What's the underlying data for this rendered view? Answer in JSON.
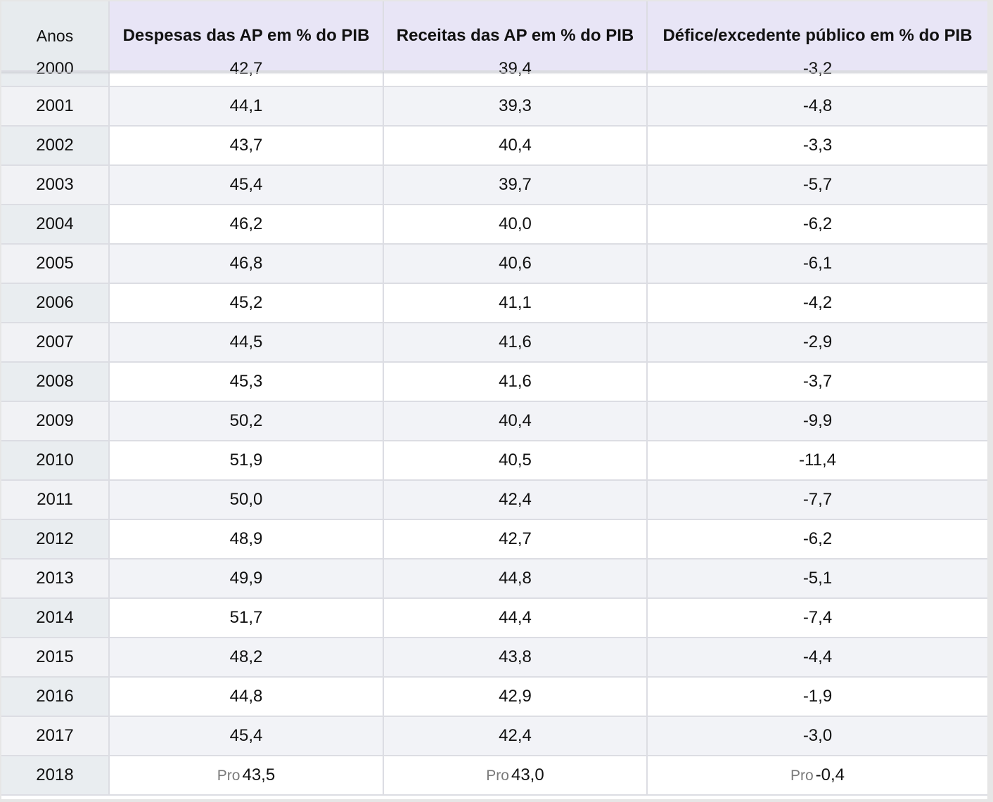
{
  "table": {
    "headers": [
      "Anos",
      "Despesas das AP em % do PIB",
      "Receitas das AP em % do PIB",
      "Défice/excedente público em % do PIB"
    ],
    "partial_row": {
      "year": "2000",
      "despesas": "42,7",
      "receitas": "39,4",
      "defice": "-3,2"
    },
    "rows": [
      {
        "year": "2001",
        "despesas": "44,1",
        "receitas": "39,3",
        "defice": "-4,8"
      },
      {
        "year": "2002",
        "despesas": "43,7",
        "receitas": "40,4",
        "defice": "-3,3"
      },
      {
        "year": "2003",
        "despesas": "45,4",
        "receitas": "39,7",
        "defice": "-5,7"
      },
      {
        "year": "2004",
        "despesas": "46,2",
        "receitas": "40,0",
        "defice": "-6,2"
      },
      {
        "year": "2005",
        "despesas": "46,8",
        "receitas": "40,6",
        "defice": "-6,1"
      },
      {
        "year": "2006",
        "despesas": "45,2",
        "receitas": "41,1",
        "defice": "-4,2"
      },
      {
        "year": "2007",
        "despesas": "44,5",
        "receitas": "41,6",
        "defice": "-2,9"
      },
      {
        "year": "2008",
        "despesas": "45,3",
        "receitas": "41,6",
        "defice": "-3,7"
      },
      {
        "year": "2009",
        "despesas": "50,2",
        "receitas": "40,4",
        "defice": "-9,9"
      },
      {
        "year": "2010",
        "despesas": "51,9",
        "receitas": "40,5",
        "defice": "-11,4"
      },
      {
        "year": "2011",
        "despesas": "50,0",
        "receitas": "42,4",
        "defice": "-7,7"
      },
      {
        "year": "2012",
        "despesas": "48,9",
        "receitas": "42,7",
        "defice": "-6,2"
      },
      {
        "year": "2013",
        "despesas": "49,9",
        "receitas": "44,8",
        "defice": "-5,1"
      },
      {
        "year": "2014",
        "despesas": "51,7",
        "receitas": "44,4",
        "defice": "-7,4"
      },
      {
        "year": "2015",
        "despesas": "48,2",
        "receitas": "43,8",
        "defice": "-4,4"
      },
      {
        "year": "2016",
        "despesas": "44,8",
        "receitas": "42,9",
        "defice": "-1,9"
      },
      {
        "year": "2017",
        "despesas": "45,4",
        "receitas": "42,4",
        "defice": "-3,0"
      }
    ],
    "last_row": {
      "year": "2018",
      "pro_label": "Pro",
      "despesas": "43,5",
      "receitas": "43,0",
      "defice": "-0,4"
    }
  }
}
